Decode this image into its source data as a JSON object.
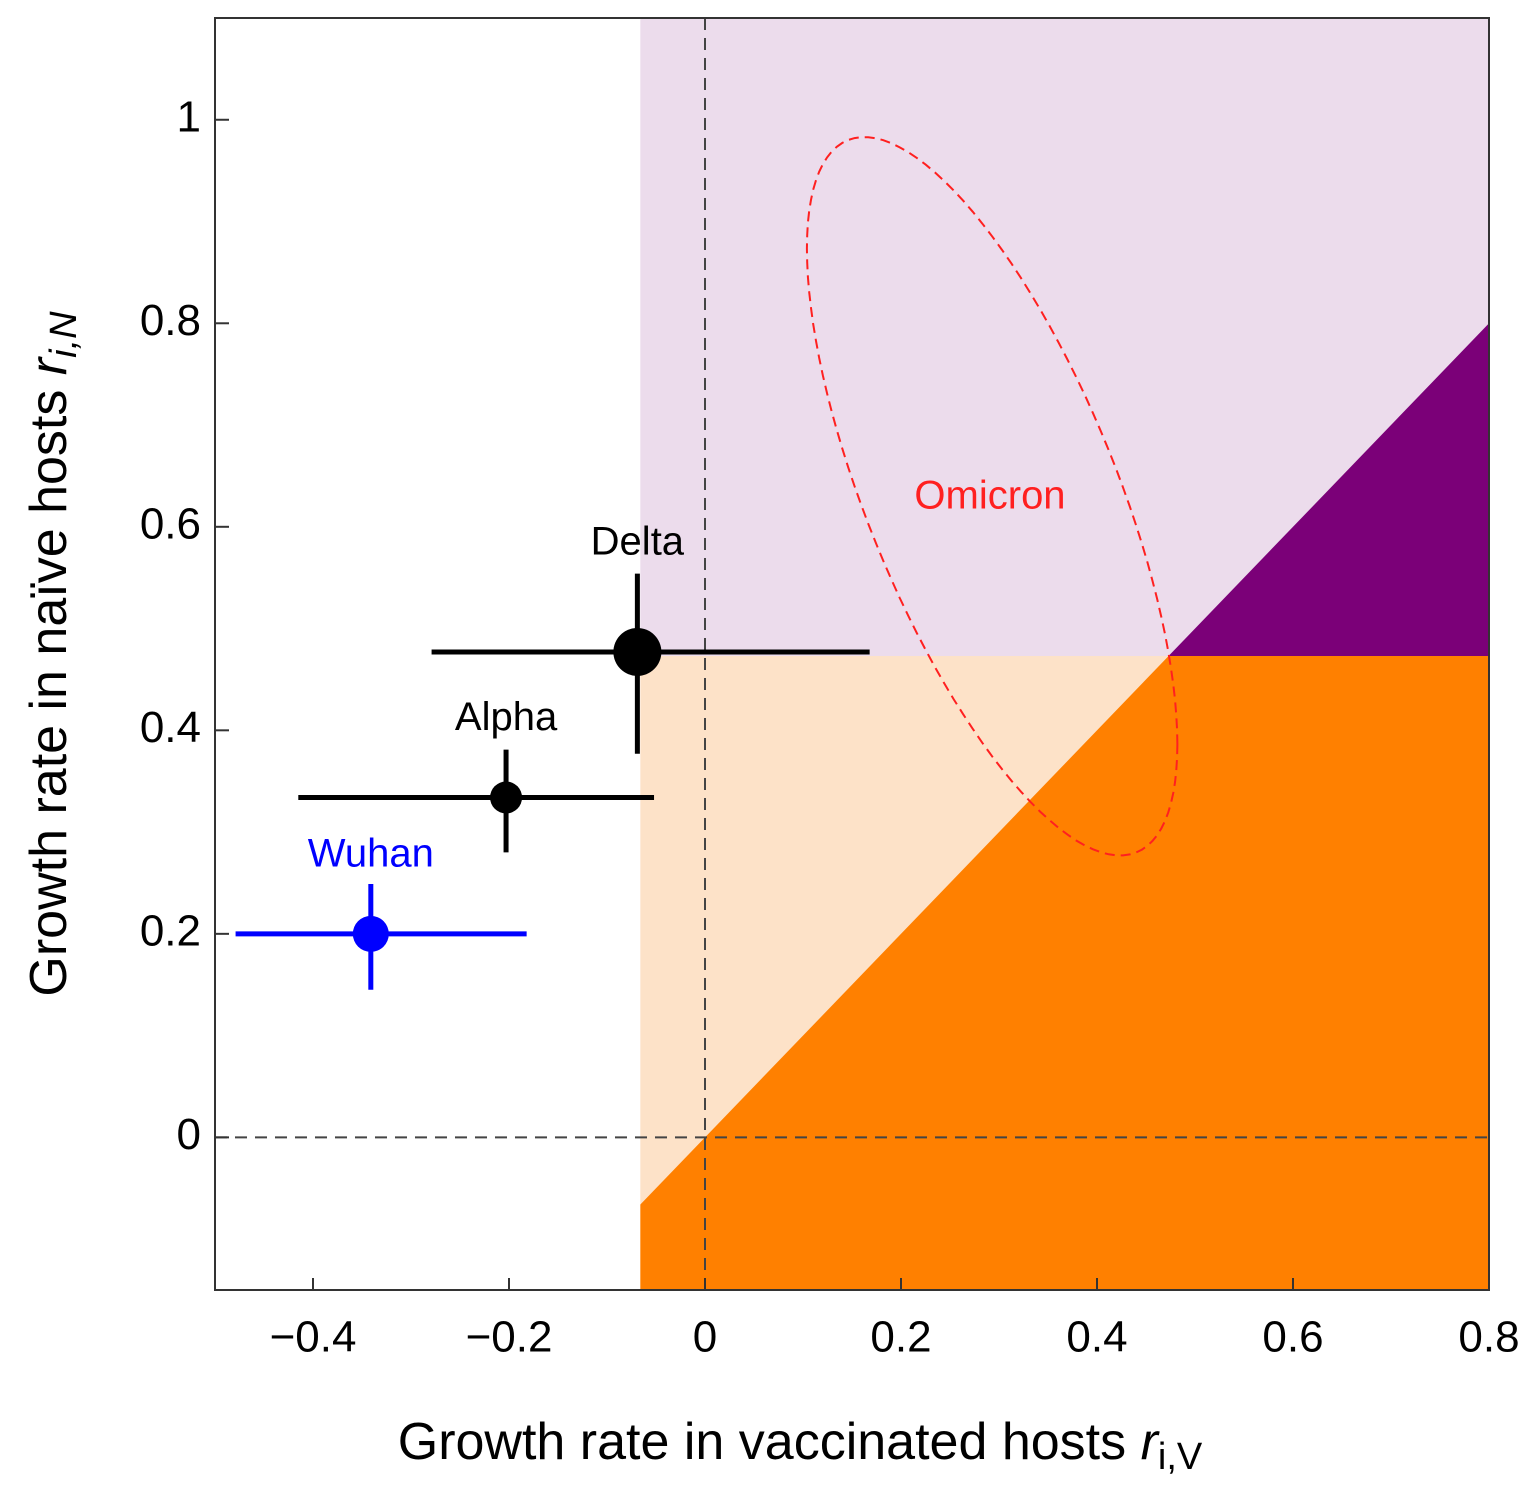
{
  "chart_data": {
    "type": "scatter",
    "xlabel": "Growth rate in vaccinated hosts",
    "xlabel_symbol": "r",
    "xlabel_subscript": "i,V",
    "ylabel": "Growth rate in naïve hosts",
    "ylabel_symbol": "r",
    "ylabel_subscript": "i,N",
    "xlim": [
      -0.5,
      0.8
    ],
    "ylim": [
      -0.15,
      1.1
    ],
    "xticks": [
      {
        "value": -0.4,
        "label": "−0.4"
      },
      {
        "value": -0.2,
        "label": "−0.2"
      },
      0,
      0.2,
      0.4,
      0.6,
      0.8
    ],
    "yticks": [
      0,
      0.2,
      0.4,
      0.6,
      0.8,
      1
    ],
    "hline": 0,
    "vline": 0,
    "regions": {
      "x_threshold": -0.066,
      "y_threshold": 0.473,
      "colors": {
        "upper": "#ecdcec",
        "upper_right": "#7b0078",
        "middle": "#fde2c8",
        "lower": "#ff8000"
      }
    },
    "ellipse": {
      "name": "Omicron",
      "color": "#ff2020",
      "center": [
        0.293,
        0.63
      ],
      "half_width": 0.189,
      "half_height": 0.353,
      "correlation": -0.69
    },
    "series": [
      {
        "name": "Wuhan",
        "color": "#0000ff",
        "x": [
          -0.341
        ],
        "values": [
          0.2
        ],
        "x_lower": [
          -0.479
        ],
        "x_upper": [
          -0.182
        ],
        "y_lower": [
          0.145
        ],
        "y_upper": [
          0.249
        ]
      },
      {
        "name": "Alpha",
        "color": "#000000",
        "x": [
          -0.203
        ],
        "values": [
          0.334
        ],
        "x_lower": [
          -0.415
        ],
        "x_upper": [
          -0.052
        ],
        "y_lower": [
          0.28
        ],
        "y_upper": [
          0.381
        ]
      },
      {
        "name": "Delta",
        "color": "#000000",
        "x": [
          -0.069
        ],
        "values": [
          0.477
        ],
        "x_lower": [
          -0.279
        ],
        "x_upper": [
          0.168
        ],
        "y_lower": [
          0.377
        ],
        "y_upper": [
          0.554
        ]
      }
    ]
  }
}
